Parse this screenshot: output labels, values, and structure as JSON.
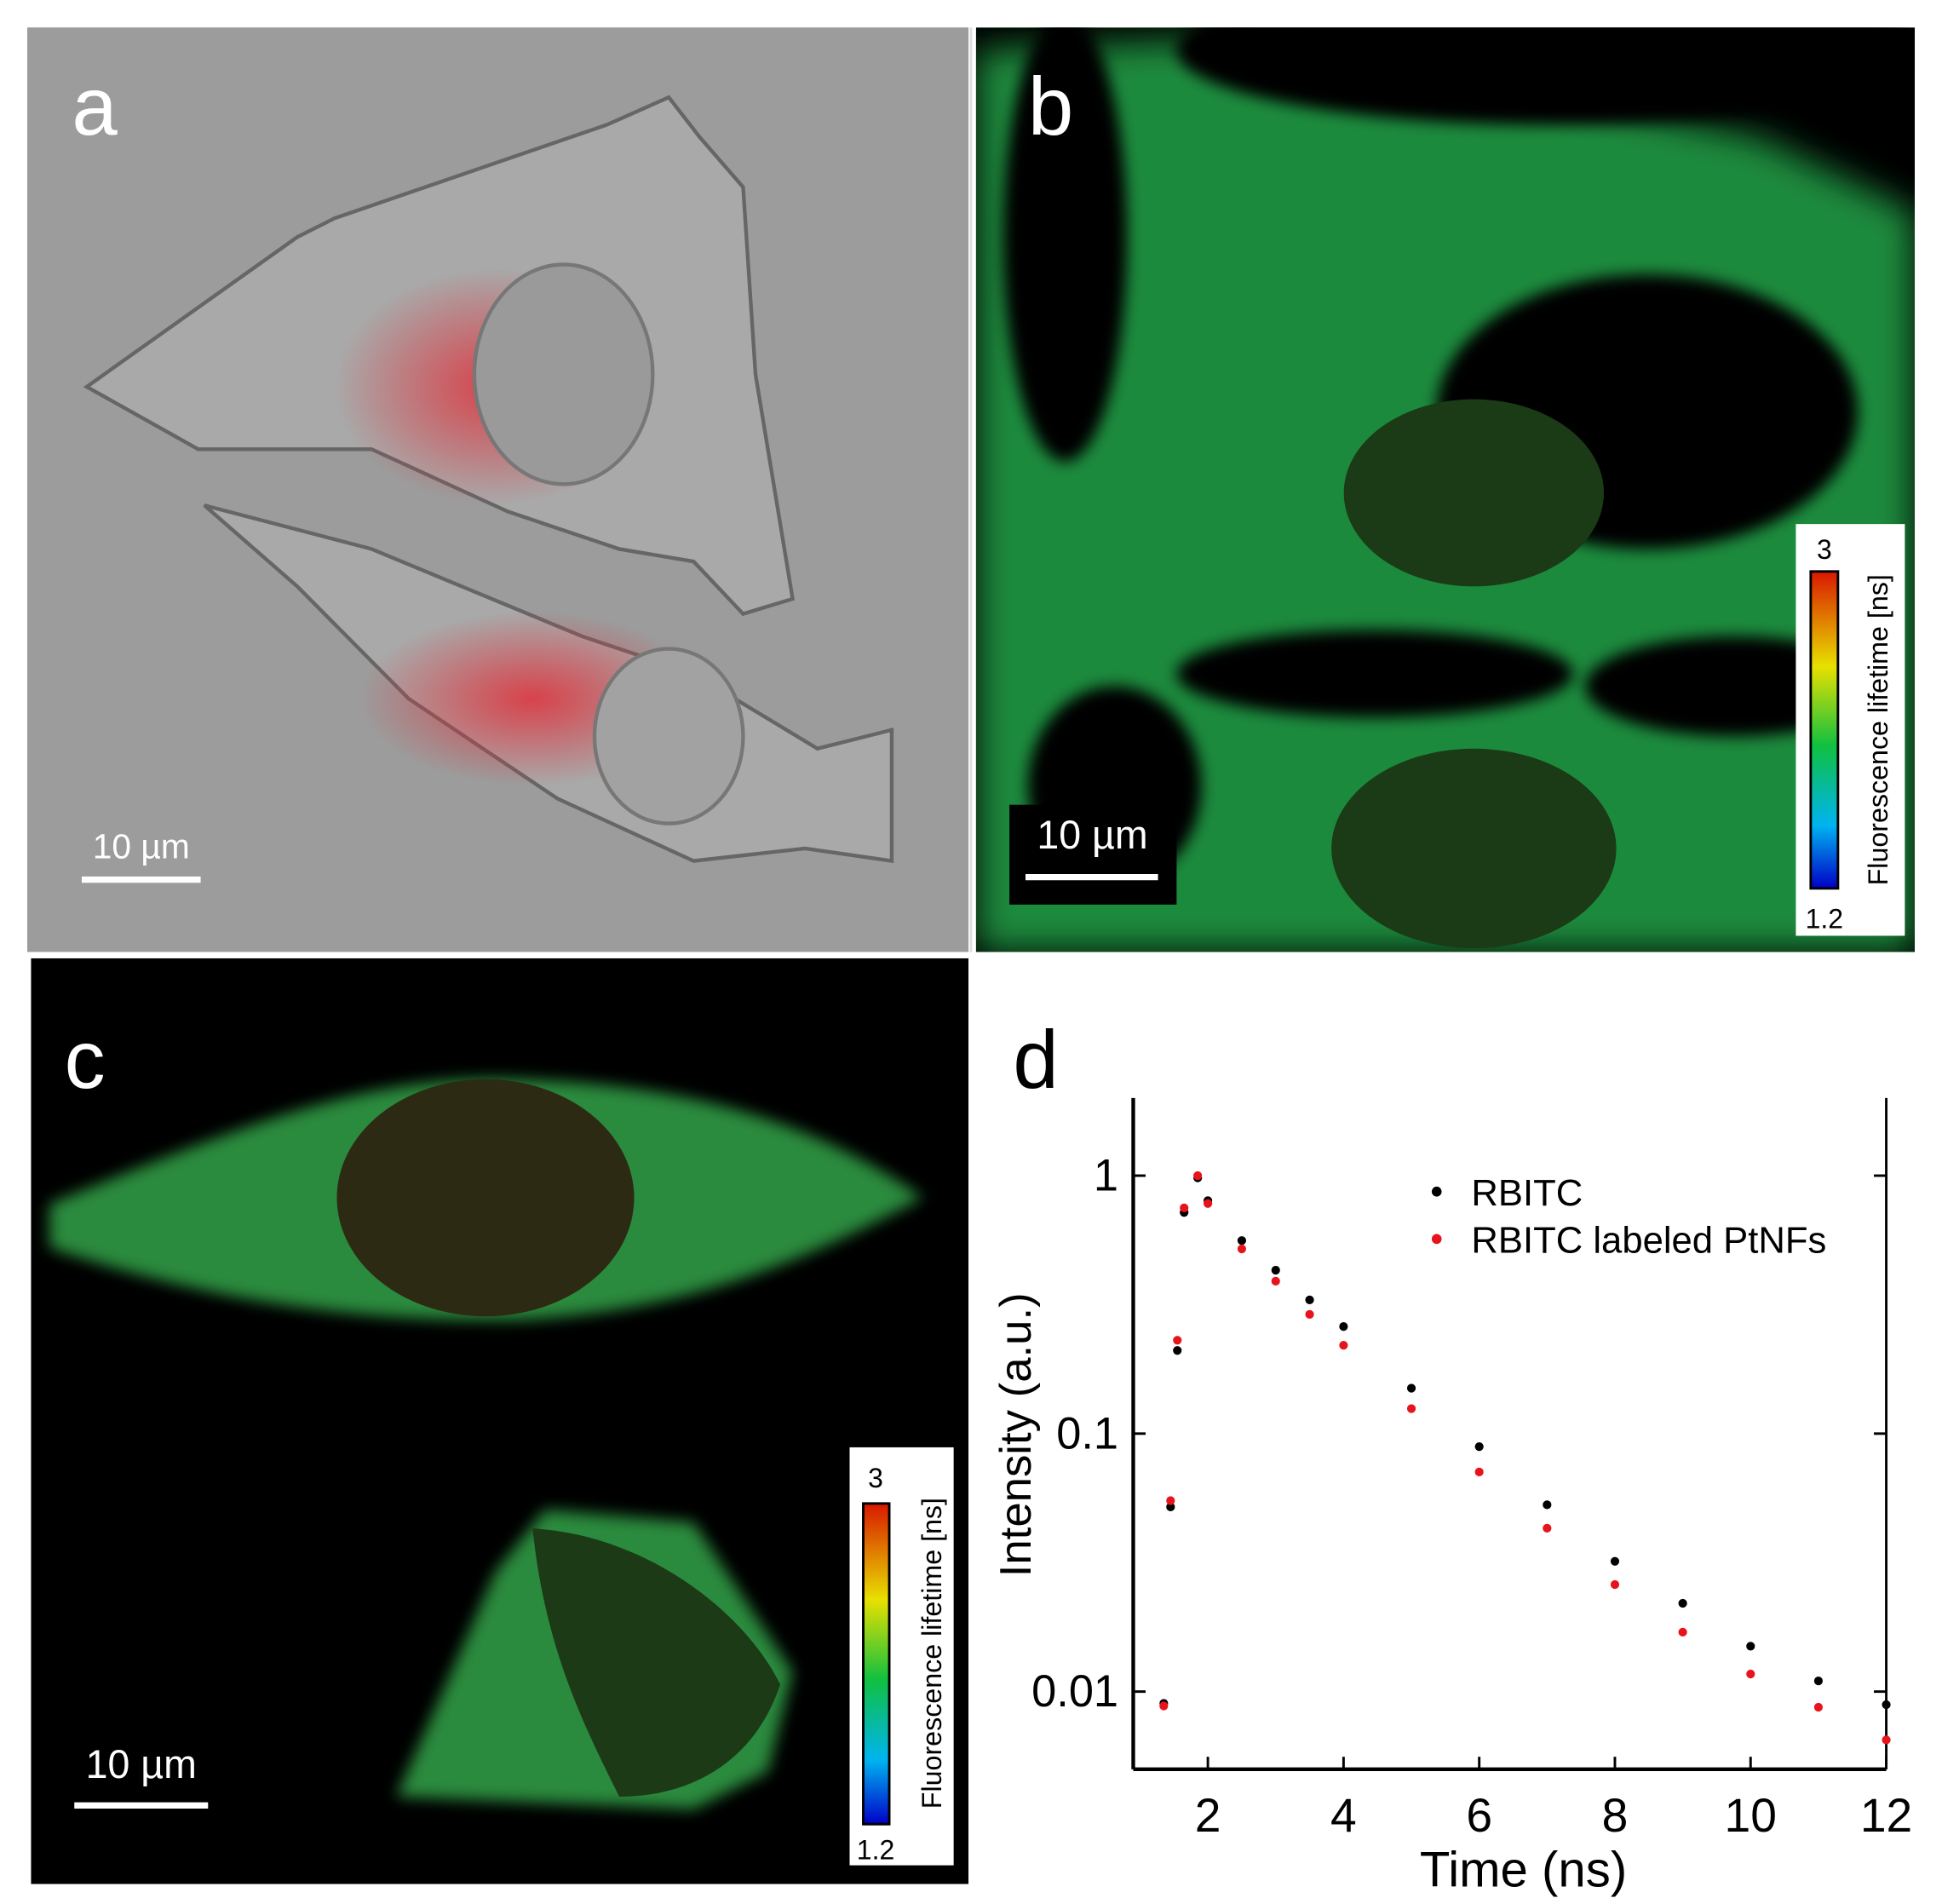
{
  "panels": [
    {
      "label": "a",
      "scale_bar": "10 µm"
    },
    {
      "label": "b",
      "scale_bar": "10 µm",
      "colorbar": {
        "label": "Fluorescence lifetime [ns]",
        "ticks": [
          3,
          1.2
        ]
      }
    },
    {
      "label": "c",
      "scale_bar": "10 µm",
      "colorbar": {
        "label": "Fluorescence lifetime [ns]",
        "ticks": [
          3,
          1.2
        ]
      }
    }
  ],
  "chart_data": {
    "type": "scatter",
    "panel_label": "d",
    "x_label": "Time (ns)",
    "y_label": "Intensity (a.u.)",
    "log_y": true,
    "legend": "upper right",
    "x": [
      1.35,
      1.45,
      1.55,
      1.65,
      1.85,
      2,
      2.5,
      3,
      3.5,
      4,
      5,
      6,
      7,
      8,
      9,
      10,
      11,
      12
    ],
    "series": [
      {
        "name": "RBITC",
        "color": "#000000",
        "values": [
          0.009,
          0.052,
          0.21,
          0.72,
          0.98,
          0.8,
          0.56,
          0.43,
          0.33,
          0.26,
          0.15,
          0.089,
          0.053,
          0.032,
          0.022,
          0.015,
          0.011,
          0.0089
        ]
      },
      {
        "name": "RBITC labeled PtNFs",
        "color": "#e8141c",
        "values": [
          0.0088,
          0.055,
          0.23,
          0.75,
          1.0,
          0.78,
          0.52,
          0.39,
          0.29,
          0.22,
          0.125,
          0.071,
          0.043,
          0.026,
          0.017,
          0.0117,
          0.0087,
          0.0065
        ]
      }
    ],
    "xlim": [
      0.9,
      12
    ],
    "ylim": [
      0.005,
      2
    ],
    "xticks": [
      2,
      4,
      6,
      8,
      10,
      12
    ],
    "yticks": [
      0.01,
      0.1,
      1
    ]
  }
}
